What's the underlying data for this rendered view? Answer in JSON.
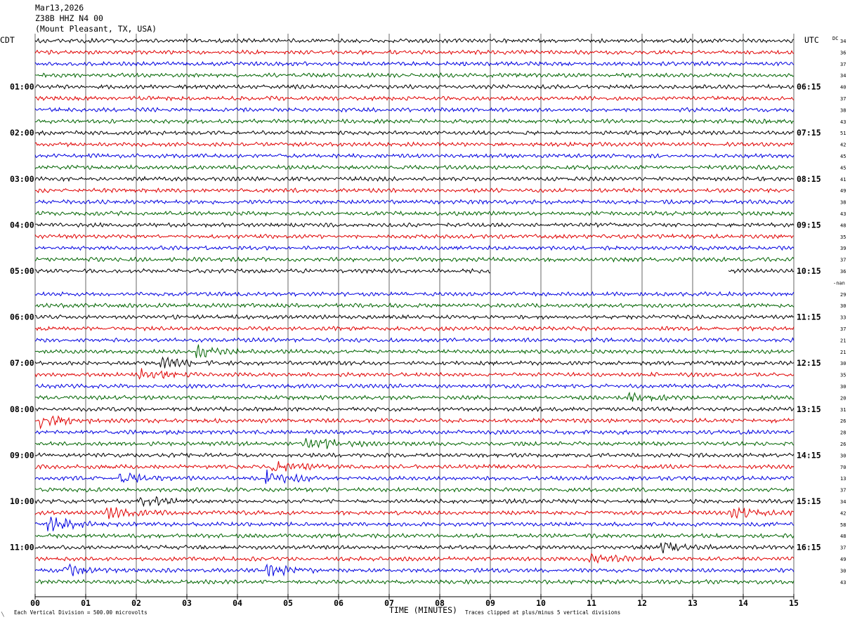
{
  "header": {
    "date": "Mar13,2026",
    "station": "Z38B HHZ N4 00",
    "location": "(Mount Pleasant, TX, USA)"
  },
  "left_zone_label": "CDT",
  "right_zone_label": "UTC",
  "dc_label": "DC",
  "footer": {
    "scale_note": "Each Vertical Division =  500.00 microvolts",
    "xaxis_title": "TIME (MINUTES)",
    "clip_note": "Traces clipped at plus/minus 5 vertical divisions",
    "corner_mark": "╲"
  },
  "chart_data": {
    "type": "helicorder",
    "trace_colors": [
      "#000000",
      "#e00000",
      "#0000e0",
      "#006400"
    ],
    "x_ticks": [
      "00",
      "01",
      "02",
      "03",
      "04",
      "05",
      "06",
      "07",
      "08",
      "09",
      "10",
      "11",
      "12",
      "13",
      "14",
      "15"
    ],
    "xlim": [
      0,
      15
    ],
    "rows_per_hour": 4,
    "minutes_per_row": 15,
    "left_time_labels": [
      "01:00",
      "02:00",
      "03:00",
      "04:00",
      "05:00",
      "06:00",
      "07:00",
      "08:00",
      "09:00",
      "10:00",
      "11:00"
    ],
    "right_time_labels": [
      "06:15",
      "07:15",
      "08:15",
      "09:15",
      "10:15",
      "11:15",
      "12:15",
      "13:15",
      "14:15",
      "15:15",
      "16:15"
    ],
    "dc_values": [
      "34",
      "36",
      "37",
      "34",
      "40",
      "37",
      "38",
      "43",
      "51",
      "42",
      "45",
      "45",
      "41",
      "49",
      "38",
      "43",
      "48",
      "35",
      "39",
      "37",
      "36",
      "-nan",
      "29",
      "30",
      "33",
      "37",
      "21",
      "21",
      "30",
      "35",
      "30",
      "20",
      "31",
      "26",
      "28",
      "26",
      "30",
      "70",
      "13",
      "37",
      "34",
      "42",
      "58",
      "48",
      "37",
      "49",
      "30",
      "43"
    ],
    "gap_rows": [
      {
        "row": 20,
        "gap_minutes": [
          9.0,
          13.7
        ]
      },
      {
        "row": 21,
        "gap_minutes": [
          0,
          15
        ]
      }
    ],
    "events": [
      {
        "row": 27,
        "minute": 3.2,
        "amplitude": 2.2
      },
      {
        "row": 28,
        "minute": 2.5,
        "amplitude": 1.6
      },
      {
        "row": 29,
        "minute": 2.1,
        "amplitude": 1.6
      },
      {
        "row": 31,
        "minute": 11.7,
        "amplitude": 1.4
      },
      {
        "row": 33,
        "minute": 0.15,
        "amplitude": 2.0
      },
      {
        "row": 35,
        "minute": 5.4,
        "amplitude": 3.0
      },
      {
        "row": 37,
        "minute": 4.7,
        "amplitude": 1.8
      },
      {
        "row": 38,
        "minute": 1.7,
        "amplitude": 1.8
      },
      {
        "row": 38,
        "minute": 4.6,
        "amplitude": 2.4
      },
      {
        "row": 40,
        "minute": 2.1,
        "amplitude": 1.8
      },
      {
        "row": 41,
        "minute": 1.4,
        "amplitude": 1.8
      },
      {
        "row": 41,
        "minute": 13.8,
        "amplitude": 1.8
      },
      {
        "row": 42,
        "minute": 0.3,
        "amplitude": 2.2
      },
      {
        "row": 44,
        "minute": 12.4,
        "amplitude": 1.6
      },
      {
        "row": 45,
        "minute": 11.0,
        "amplitude": 1.8
      },
      {
        "row": 46,
        "minute": 0.6,
        "amplitude": 1.8
      },
      {
        "row": 46,
        "minute": 4.6,
        "amplitude": 2.0
      }
    ]
  }
}
